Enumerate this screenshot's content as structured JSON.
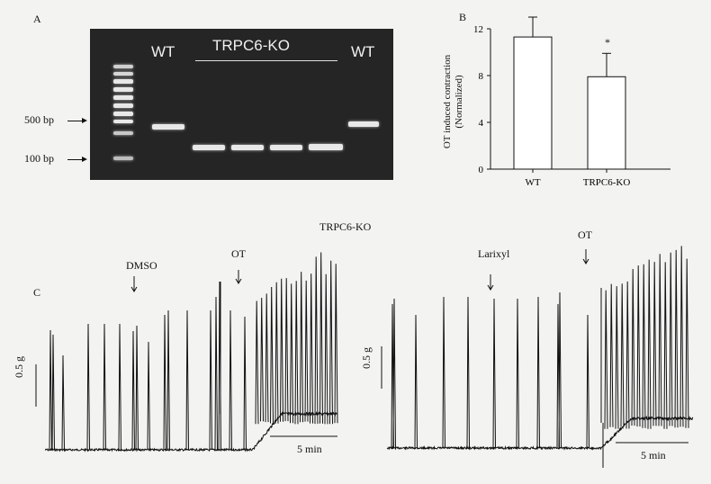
{
  "panel_a": {
    "label": "A",
    "marker_500": "500 bp",
    "marker_100": "100 bp",
    "lane_wt_left": "WT",
    "lane_ko": "TRPC6-KO",
    "lane_wt_right": "WT"
  },
  "panel_b": {
    "label": "B",
    "ylabel_line1": "OT induced contraction",
    "ylabel_line2": "(Normalized)",
    "significance": "*",
    "chart_data": {
      "type": "bar",
      "categories": [
        "WT",
        "TRPC6-KO"
      ],
      "values": [
        11.3,
        7.9
      ],
      "errors": [
        1.7,
        2.0
      ],
      "ylim": [
        0,
        12
      ],
      "yticks": [
        "0",
        "4",
        "8",
        "12"
      ],
      "xlabel": "",
      "ylabel": "OT induced contraction (Normalized)"
    }
  },
  "panel_c": {
    "label": "C",
    "title": "TRPC6-KO",
    "left": {
      "marker1": "DMSO",
      "marker2": "OT",
      "scale_y": "0.5 g",
      "scale_x": "5 min"
    },
    "right": {
      "marker1": "Larixyl",
      "marker2": "OT",
      "scale_y": "0.5 g",
      "scale_x": "5 min"
    }
  }
}
